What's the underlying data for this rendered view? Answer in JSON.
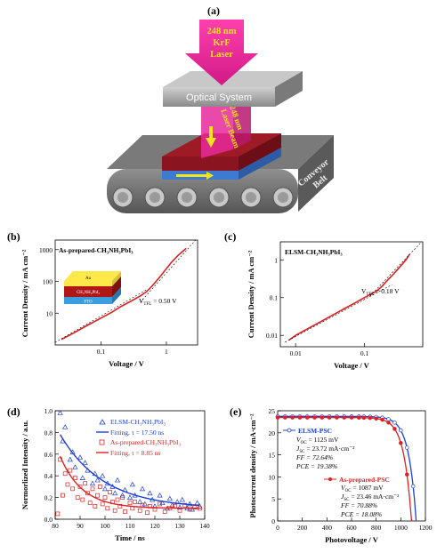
{
  "colors": {
    "laser": "#e8299a",
    "optical": "#a8a8a8",
    "belt": "#6f6f6f",
    "film": "#8a1420",
    "substrate": "#3e7ad2",
    "arrow_yellow": "#f4e21a",
    "fit_red": "#e02020",
    "fit_blue": "#1c3fd8",
    "au": "#ffe84a",
    "pvk": "#b01818",
    "fto": "#3a9ee0"
  },
  "panel_a": {
    "label": "(a)",
    "laser_text": [
      "248 nm",
      "KrF",
      "Laser"
    ],
    "optical_system": "Optical System",
    "beam_text": [
      "248 nm",
      "Laser Beam"
    ],
    "conveyor_text": [
      "Conveyor",
      "Belt"
    ]
  },
  "panel_b": {
    "label": "(b)",
    "title": "As-prepared-CH₃NH₃PbI₃",
    "ylabel": "Current Density / mA cm⁻²",
    "xlabel": "Voltage / V",
    "vtfl": "V",
    "vtfl_sub": "TFL",
    "vtfl_val": " = 0.50 V",
    "inset": {
      "au": "Au",
      "pvk": "CH₃NH₃PbI₃",
      "fto": "FTO"
    },
    "chart_data": {
      "type": "line",
      "xscale": "log",
      "yscale": "log",
      "xlim": [
        0.02,
        3
      ],
      "ylim": [
        1,
        2000
      ],
      "xticks": [
        {
          "v": 0.1,
          "label": "0.1"
        },
        {
          "v": 1,
          "label": "1"
        }
      ],
      "yticks": [
        {
          "v": 10,
          "label": "10"
        },
        {
          "v": 100,
          "label": "100"
        },
        {
          "v": 1000,
          "label": "1000"
        }
      ],
      "series": [
        {
          "x": [
            0.025,
            0.04,
            0.06,
            0.1,
            0.15,
            0.2,
            0.3,
            0.4,
            0.5,
            0.6,
            0.8,
            1.0,
            1.2,
            1.5,
            1.8,
            2.0
          ],
          "y": [
            1.5,
            2.5,
            4,
            7,
            11,
            16,
            25,
            35,
            48,
            70,
            140,
            250,
            400,
            650,
            900,
            1100
          ]
        }
      ]
    }
  },
  "panel_c": {
    "label": "(c)",
    "title": "ELSM-CH₃NH₃PbI₃",
    "ylabel": "Current Density / mA cm⁻²",
    "xlabel": "Voltage / V",
    "vtfl": "V",
    "vtfl_sub": "TFL",
    "vtfl_val": " = 0.18 V",
    "chart_data": {
      "type": "line",
      "xscale": "log",
      "yscale": "log",
      "xlim": [
        0.006,
        0.7
      ],
      "ylim": [
        0.005,
        3
      ],
      "xticks": [
        {
          "v": 0.01,
          "label": "0.01"
        },
        {
          "v": 0.1,
          "label": "0.1"
        }
      ],
      "yticks": [
        {
          "v": 0.01,
          "label": "0.01"
        },
        {
          "v": 0.1,
          "label": "0.1"
        },
        {
          "v": 1,
          "label": "1"
        }
      ],
      "series": [
        {
          "x": [
            0.008,
            0.01,
            0.015,
            0.02,
            0.03,
            0.05,
            0.08,
            0.1,
            0.15,
            0.18,
            0.2,
            0.25,
            0.3,
            0.4,
            0.45
          ],
          "y": [
            0.0075,
            0.01,
            0.015,
            0.02,
            0.03,
            0.05,
            0.08,
            0.1,
            0.15,
            0.2,
            0.25,
            0.38,
            0.55,
            1.0,
            1.4
          ]
        }
      ]
    }
  },
  "panel_d": {
    "label": "(d)",
    "ylabel": "Normorlized Intensity / a.u.",
    "xlabel": "Time / ns",
    "legend": [
      {
        "text": "ELSM-CH₃NH₃PbI₃"
      },
      {
        "text": "Fitting, τ = 17.50 ns"
      },
      {
        "text": "As-prepared-CH₃NH₃PbI₃"
      },
      {
        "text": "Fitting, τ = 8.85 ns"
      }
    ],
    "chart_data": {
      "type": "scatter",
      "xlim": [
        80,
        140
      ],
      "ylim": [
        0,
        1.0
      ],
      "xticks": [
        80,
        90,
        100,
        110,
        120,
        130,
        140
      ],
      "yticks": [
        {
          "v": 0.0,
          "label": "0.0"
        },
        {
          "v": 0.2,
          "label": "0.2"
        },
        {
          "v": 0.4,
          "label": "0.4"
        },
        {
          "v": 0.6,
          "label": "0.6"
        },
        {
          "v": 0.8,
          "label": "0.8"
        },
        {
          "v": 1.0,
          "label": "1.0"
        }
      ],
      "elsm_x": [
        82,
        83,
        84,
        86,
        87,
        88,
        90,
        91,
        92,
        93,
        95,
        96,
        97,
        99,
        100,
        101,
        103,
        104,
        105,
        107,
        108,
        110,
        111,
        112,
        114,
        115,
        116,
        118,
        119,
        120,
        122,
        123,
        125,
        126,
        127,
        129,
        130,
        131,
        133,
        134,
        135,
        137,
        138
      ],
      "elsm_y": [
        0.98,
        0.72,
        0.85,
        0.55,
        0.62,
        0.48,
        0.57,
        0.38,
        0.52,
        0.45,
        0.33,
        0.42,
        0.36,
        0.4,
        0.28,
        0.33,
        0.3,
        0.24,
        0.36,
        0.22,
        0.27,
        0.2,
        0.32,
        0.22,
        0.16,
        0.28,
        0.14,
        0.24,
        0.18,
        0.12,
        0.22,
        0.15,
        0.1,
        0.19,
        0.13,
        0.16,
        0.11,
        0.18,
        0.1,
        0.14,
        0.09,
        0.15,
        0.12
      ],
      "asp_x": [
        81,
        82,
        83,
        84,
        85,
        86,
        87,
        88,
        89,
        90,
        91,
        92,
        93,
        94,
        95,
        96,
        97,
        98,
        99,
        100,
        101,
        102,
        103,
        104,
        105,
        106,
        107,
        108,
        110,
        111,
        112,
        114,
        115,
        117,
        118,
        120,
        122,
        124,
        126,
        128,
        130,
        132,
        134,
        136,
        138
      ],
      "asp_y": [
        0.05,
        0.55,
        0.22,
        0.42,
        0.32,
        0.45,
        0.28,
        0.38,
        0.2,
        0.3,
        0.18,
        0.33,
        0.24,
        0.15,
        0.28,
        0.12,
        0.22,
        0.3,
        0.14,
        0.2,
        0.1,
        0.25,
        0.16,
        0.08,
        0.18,
        0.12,
        0.2,
        0.07,
        0.15,
        0.1,
        0.16,
        0.08,
        0.13,
        0.06,
        0.12,
        0.09,
        0.14,
        0.07,
        0.1,
        0.12,
        0.08,
        0.13,
        0.09,
        0.11,
        0.1
      ],
      "elsm_tau": 17.5,
      "asp_tau": 8.85
    }
  },
  "panel_e": {
    "label": "(e)",
    "ylabel": "Photocurrent density / mA·cm⁻²",
    "xlabel": "Photovoltage / V",
    "elsm": {
      "name": "ELSM-PSC",
      "voc": "V",
      "voc_sub": "OC",
      "voc_val": " = 1125 mV",
      "jsc": "J",
      "jsc_sub": "SC",
      "jsc_val": " = 23.72 mA·cm⁻²",
      "ff": "FF = 72.64%",
      "pce": "PCE = 19.38%"
    },
    "asp": {
      "name": "As-prepared-PSC",
      "voc": "V",
      "voc_sub": "OC",
      "voc_val": " = 1087 mV",
      "jsc": "J",
      "jsc_sub": "SC",
      "jsc_val": " = 23.46 mA·cm⁻²",
      "ff": "FF = 70.88%",
      "pce": "PCE = 18.08%"
    },
    "chart_data": {
      "type": "line",
      "xlim": [
        0,
        1200
      ],
      "ylim": [
        0,
        25
      ],
      "xticks": [
        0,
        200,
        400,
        600,
        800,
        1000,
        1200
      ],
      "yticks": [
        0,
        5,
        10,
        15,
        20,
        25
      ],
      "elsm_voc": 1125,
      "elsm_jsc": 23.72,
      "asp_voc": 1087,
      "asp_jsc": 23.46
    }
  }
}
